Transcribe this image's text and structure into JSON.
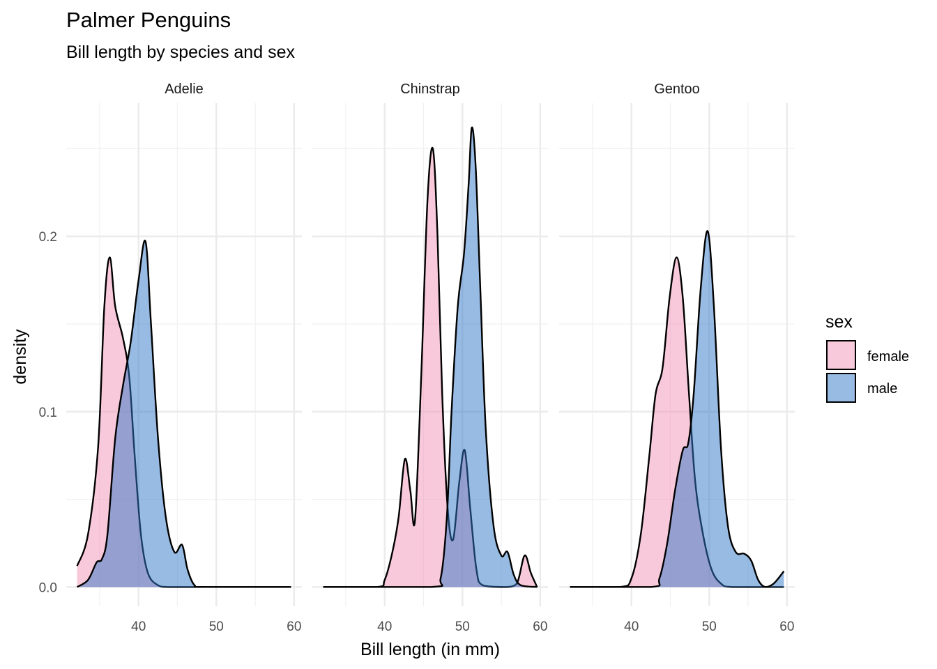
{
  "chart_data": {
    "type": "area",
    "title": "Palmer Penguins",
    "subtitle": "Bill length by species and sex",
    "xlabel": "Bill length (in mm)",
    "ylabel": "density",
    "xlim": [
      30.7,
      61.0
    ],
    "ylim": [
      -0.011,
      0.276
    ],
    "x_ticks": [
      40,
      50,
      60
    ],
    "x_tick_labels": [
      "40",
      "50",
      "60"
    ],
    "y_ticks": [
      0.0,
      0.1,
      0.2
    ],
    "y_tick_labels": [
      "0.0",
      "0.1",
      "0.2"
    ],
    "grid": true,
    "legend": {
      "title": "sex",
      "placement": "right",
      "entries": [
        {
          "label": "female",
          "color": "#f8c9da"
        },
        {
          "label": "male",
          "color": "#98bbe3"
        }
      ]
    },
    "colors": {
      "female": "#f193b5",
      "male": "#3177c8",
      "alpha": 0.5
    },
    "facets": [
      {
        "label": "Adelie",
        "series": [
          {
            "name": "female",
            "points": [
              [
                32.1,
                0.012
              ],
              [
                33.5,
                0.03
              ],
              [
                34.8,
                0.08
              ],
              [
                35.6,
                0.16
              ],
              [
                36.3,
                0.188
              ],
              [
                37.0,
                0.16
              ],
              [
                38.0,
                0.142
              ],
              [
                38.8,
                0.12
              ],
              [
                39.5,
                0.075
              ],
              [
                40.3,
                0.03
              ],
              [
                41.2,
                0.008
              ],
              [
                42.5,
                0.001
              ],
              [
                44,
                0
              ],
              [
                50,
                0
              ],
              [
                59.6,
                0
              ]
            ]
          },
          {
            "name": "male",
            "points": [
              [
                32.1,
                0.0
              ],
              [
                33.5,
                0.004
              ],
              [
                34.6,
                0.014
              ],
              [
                35.3,
                0.016
              ],
              [
                36.0,
                0.03
              ],
              [
                37.0,
                0.085
              ],
              [
                38.0,
                0.115
              ],
              [
                39.0,
                0.14
              ],
              [
                40.0,
                0.175
              ],
              [
                40.9,
                0.197
              ],
              [
                41.6,
                0.15
              ],
              [
                42.5,
                0.085
              ],
              [
                43.5,
                0.04
              ],
              [
                44.6,
                0.02
              ],
              [
                45.6,
                0.024
              ],
              [
                46.3,
                0.01
              ],
              [
                47.2,
                0.001
              ],
              [
                48.5,
                0
              ],
              [
                59.6,
                0
              ]
            ]
          }
        ]
      },
      {
        "label": "Chinstrap",
        "series": [
          {
            "name": "female",
            "points": [
              [
                32.1,
                0
              ],
              [
                39.0,
                0
              ],
              [
                40.0,
                0.004
              ],
              [
                41.0,
                0.02
              ],
              [
                41.8,
                0.04
              ],
              [
                42.6,
                0.073
              ],
              [
                43.3,
                0.055
              ],
              [
                43.9,
                0.038
              ],
              [
                44.7,
                0.12
              ],
              [
                45.5,
                0.22
              ],
              [
                46.2,
                0.25
              ],
              [
                46.8,
                0.2
              ],
              [
                47.4,
                0.11
              ],
              [
                48.1,
                0.045
              ],
              [
                48.8,
                0.027
              ],
              [
                49.6,
                0.06
              ],
              [
                50.3,
                0.078
              ],
              [
                51.0,
                0.045
              ],
              [
                51.8,
                0.01
              ],
              [
                52.6,
                0.001
              ],
              [
                55.5,
                0
              ],
              [
                57.0,
                0.002
              ],
              [
                58.0,
                0.018
              ],
              [
                58.8,
                0.008
              ],
              [
                59.6,
                0
              ]
            ]
          },
          {
            "name": "male",
            "points": [
              [
                32.1,
                0
              ],
              [
                46.0,
                0
              ],
              [
                47.2,
                0.005
              ],
              [
                48.0,
                0.04
              ],
              [
                48.6,
                0.1
              ],
              [
                49.4,
                0.16
              ],
              [
                50.2,
                0.19
              ],
              [
                50.8,
                0.23
              ],
              [
                51.2,
                0.262
              ],
              [
                51.7,
                0.24
              ],
              [
                52.3,
                0.17
              ],
              [
                53.0,
                0.09
              ],
              [
                54.0,
                0.035
              ],
              [
                55.0,
                0.018
              ],
              [
                55.8,
                0.02
              ],
              [
                56.6,
                0.007
              ],
              [
                57.5,
                0.001
              ],
              [
                59.6,
                0
              ]
            ]
          }
        ]
      },
      {
        "label": "Gentoo",
        "series": [
          {
            "name": "female",
            "points": [
              [
                32.1,
                0
              ],
              [
                38.5,
                0
              ],
              [
                40.0,
                0.005
              ],
              [
                41.2,
                0.03
              ],
              [
                42.3,
                0.075
              ],
              [
                43.1,
                0.11
              ],
              [
                44.0,
                0.125
              ],
              [
                44.9,
                0.165
              ],
              [
                45.8,
                0.188
              ],
              [
                46.6,
                0.165
              ],
              [
                47.4,
                0.11
              ],
              [
                48.2,
                0.06
              ],
              [
                49.2,
                0.03
              ],
              [
                50.3,
                0.01
              ],
              [
                51.5,
                0.002
              ],
              [
                53,
                0
              ],
              [
                59.6,
                0
              ]
            ]
          },
          {
            "name": "male",
            "points": [
              [
                32.1,
                0
              ],
              [
                42.5,
                0
              ],
              [
                43.6,
                0.005
              ],
              [
                44.6,
                0.025
              ],
              [
                45.6,
                0.055
              ],
              [
                46.6,
                0.078
              ],
              [
                47.3,
                0.082
              ],
              [
                48.0,
                0.11
              ],
              [
                48.9,
                0.17
              ],
              [
                49.8,
                0.203
              ],
              [
                50.6,
                0.16
              ],
              [
                51.5,
                0.08
              ],
              [
                52.4,
                0.035
              ],
              [
                53.4,
                0.02
              ],
              [
                54.5,
                0.019
              ],
              [
                55.4,
                0.015
              ],
              [
                56.3,
                0.004
              ],
              [
                57.2,
                0.0
              ],
              [
                58.3,
                0.002
              ],
              [
                59.6,
                0.009
              ]
            ]
          }
        ]
      }
    ]
  }
}
